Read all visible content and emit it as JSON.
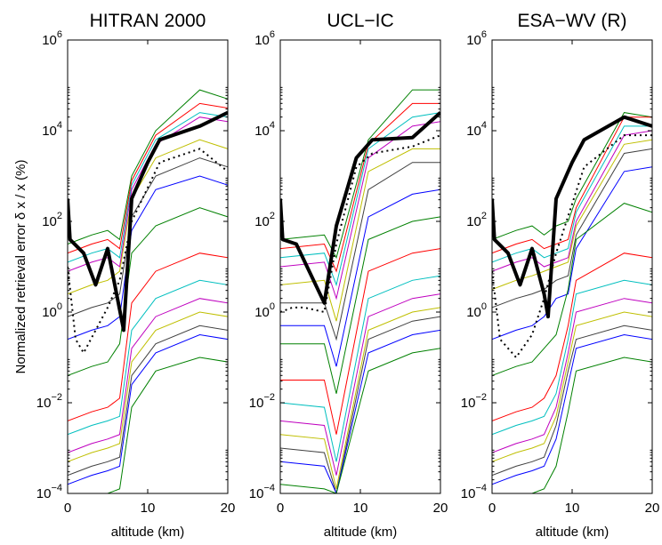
{
  "ylabel": "Normalized retrieval error  δ x / x (%)",
  "chart_data": [
    {
      "type": "line",
      "title": "HITRAN 2000",
      "xlabel": "altitude (km)",
      "xlim": [
        0,
        20
      ],
      "ylim_log10": [
        -4,
        6
      ],
      "yscale": "log",
      "x_ticks": [
        "0",
        "10",
        "20"
      ],
      "y_ticks": [
        "10^-4",
        "10^-2",
        "10^0",
        "10^2",
        "10^4",
        "10^6"
      ],
      "x": [
        0,
        1.5,
        3,
        5,
        6.5,
        8,
        11,
        16.5,
        20
      ],
      "colors": [
        "#008000",
        "#ff0000",
        "#00bfbf",
        "#bf00bf",
        "#bfbf00",
        "#404040",
        "#0000ff",
        "#008000",
        "#ff0000",
        "#00bfbf",
        "#bf00bf",
        "#bfbf00",
        "#404040",
        "#0000ff",
        "#008000"
      ],
      "thin_log10": [
        [
          1.5,
          1.6,
          1.7,
          1.8,
          1.6,
          3.0,
          4.0,
          4.9,
          4.7
        ],
        [
          1.3,
          1.4,
          1.5,
          1.6,
          1.4,
          2.9,
          3.9,
          4.6,
          4.5
        ],
        [
          1.1,
          1.2,
          1.3,
          1.4,
          1.2,
          2.8,
          3.8,
          4.4,
          4.3
        ],
        [
          0.9,
          1.0,
          1.1,
          1.2,
          1.0,
          2.7,
          3.7,
          4.3,
          4.2
        ],
        [
          0.4,
          0.5,
          0.6,
          0.7,
          0.9,
          2.5,
          3.4,
          3.8,
          3.6
        ],
        [
          -0.1,
          0.0,
          0.1,
          0.2,
          0.4,
          2.1,
          3.0,
          3.4,
          3.2
        ],
        [
          -0.6,
          -0.5,
          -0.4,
          -0.3,
          -0.1,
          1.8,
          2.7,
          3.0,
          2.8
        ],
        [
          -1.4,
          -1.3,
          -1.2,
          -1.1,
          -0.7,
          1.3,
          1.9,
          2.3,
          2.1
        ],
        [
          -2.4,
          -2.3,
          -2.2,
          -2.1,
          -1.9,
          0.2,
          0.9,
          1.3,
          1.2
        ],
        [
          -2.7,
          -2.6,
          -2.5,
          -2.4,
          -2.3,
          -0.4,
          0.3,
          0.7,
          0.6
        ],
        [
          -3.1,
          -3.0,
          -2.9,
          -2.8,
          -2.7,
          -0.8,
          -0.1,
          0.3,
          0.2
        ],
        [
          -3.3,
          -3.2,
          -3.1,
          -3.0,
          -2.9,
          -1.1,
          -0.4,
          0.0,
          -0.1
        ],
        [
          -3.6,
          -3.5,
          -3.4,
          -3.3,
          -3.2,
          -1.4,
          -0.7,
          -0.3,
          -0.4
        ],
        [
          -3.8,
          -3.7,
          -3.6,
          -3.5,
          -3.4,
          -1.6,
          -0.9,
          -0.5,
          -0.6
        ],
        [
          -4.3,
          -4.2,
          -4.1,
          -4.0,
          -3.9,
          -2.1,
          -1.3,
          -1.0,
          -1.1
        ]
      ],
      "bold_x": [
        0,
        0.3,
        2,
        3.5,
        5,
        7,
        8,
        10,
        11.5,
        16.5,
        20
      ],
      "bold_log10": [
        2.5,
        1.6,
        1.3,
        0.6,
        1.4,
        -0.4,
        2.5,
        3.3,
        3.8,
        4.1,
        4.4
      ],
      "dotted_x": [
        0,
        1,
        2,
        3.5,
        5,
        6.5,
        8,
        11.5,
        16.5,
        20
      ],
      "dotted_log10": [
        1.0,
        -0.6,
        -0.9,
        -0.4,
        0.1,
        0.7,
        2.0,
        3.3,
        3.6,
        3.1
      ]
    },
    {
      "type": "line",
      "title": "UCL−IC",
      "xlabel": "altitude (km)",
      "xlim": [
        0,
        20
      ],
      "ylim_log10": [
        -4,
        6
      ],
      "yscale": "log",
      "x_ticks": [
        "0",
        "10",
        "20"
      ],
      "y_ticks": [
        "10^-4",
        "10^-2",
        "10^0",
        "10^2",
        "10^4",
        "10^6"
      ],
      "x": [
        0,
        5.5,
        7,
        11,
        16.5,
        20
      ],
      "colors": [
        "#008000",
        "#ff0000",
        "#00bfbf",
        "#bf00bf",
        "#bfbf00",
        "#404040",
        "#0000ff",
        "#008000",
        "#ff0000",
        "#00bfbf",
        "#bf00bf",
        "#bfbf00",
        "#404040",
        "#0000ff",
        "#008000"
      ],
      "thin_log10": [
        [
          1.6,
          1.7,
          1.2,
          3.8,
          4.9,
          4.9
        ],
        [
          1.4,
          1.5,
          0.9,
          3.7,
          4.6,
          4.6
        ],
        [
          1.2,
          1.3,
          0.6,
          3.6,
          4.3,
          4.4
        ],
        [
          1.0,
          1.1,
          0.3,
          3.4,
          4.1,
          4.2
        ],
        [
          0.6,
          0.7,
          -0.2,
          3.1,
          3.6,
          3.6
        ],
        [
          0.2,
          0.2,
          -0.6,
          2.7,
          3.3,
          3.3
        ],
        [
          -0.3,
          -0.3,
          -1.2,
          2.1,
          2.6,
          2.7
        ],
        [
          -0.7,
          -0.7,
          -1.8,
          1.6,
          2.0,
          2.1
        ],
        [
          -1.5,
          -1.5,
          -2.7,
          0.9,
          1.3,
          1.4
        ],
        [
          -2.0,
          -2.1,
          -3.3,
          0.3,
          0.7,
          0.8
        ],
        [
          -2.4,
          -2.5,
          -3.6,
          -0.1,
          0.3,
          0.4
        ],
        [
          -2.7,
          -2.8,
          -3.9,
          -0.4,
          0.0,
          0.1
        ],
        [
          -3.0,
          -3.1,
          -4.1,
          -0.6,
          -0.2,
          -0.1
        ],
        [
          -3.3,
          -3.4,
          -4.3,
          -0.9,
          -0.5,
          -0.4
        ],
        [
          -3.8,
          -3.9,
          -4.6,
          -1.3,
          -0.9,
          -0.8
        ]
      ],
      "bold_x": [
        0,
        0.3,
        2,
        5.5,
        7,
        9.5,
        11.5,
        16.5,
        20
      ],
      "bold_log10": [
        2.5,
        1.6,
        1.5,
        0.2,
        1.9,
        3.4,
        3.8,
        3.85,
        4.4
      ],
      "dotted_x": [
        0,
        1.5,
        3,
        5.5,
        7,
        9.5,
        11.5,
        16.5,
        20
      ],
      "dotted_log10": [
        0.0,
        0.1,
        0.1,
        0.0,
        1.5,
        3.2,
        3.5,
        3.65,
        3.9
      ]
    },
    {
      "type": "line",
      "title": "ESA−WV (R)",
      "xlabel": "altitude (km)",
      "xlim": [
        0,
        20
      ],
      "ylim_log10": [
        -4,
        6
      ],
      "yscale": "log",
      "x_ticks": [
        "0",
        "10",
        "20"
      ],
      "y_ticks": [
        "10^-4",
        "10^-2",
        "10^0",
        "10^2",
        "10^4",
        "10^6"
      ],
      "x": [
        0,
        1.5,
        3,
        5,
        6.5,
        8,
        9.5,
        10.5,
        16.5,
        20
      ],
      "colors": [
        "#008000",
        "#ff0000",
        "#00bfbf",
        "#bf00bf",
        "#bfbf00",
        "#404040",
        "#0000ff",
        "#008000",
        "#ff0000",
        "#00bfbf",
        "#bf00bf",
        "#bfbf00",
        "#404040",
        "#0000ff",
        "#008000"
      ],
      "thin_log10": [
        [
          1.6,
          1.7,
          1.8,
          1.9,
          1.7,
          1.9,
          2.0,
          2.5,
          4.4,
          4.3
        ],
        [
          1.3,
          1.4,
          1.5,
          1.6,
          1.4,
          1.5,
          1.6,
          2.3,
          4.3,
          4.3
        ],
        [
          1.1,
          1.2,
          1.3,
          1.4,
          1.2,
          1.3,
          1.4,
          2.2,
          4.1,
          4.1
        ],
        [
          0.9,
          1.0,
          1.1,
          1.2,
          1.0,
          1.1,
          1.2,
          2.0,
          3.9,
          4.0
        ],
        [
          0.5,
          0.6,
          0.7,
          0.8,
          0.9,
          1.0,
          1.1,
          1.9,
          3.7,
          3.8
        ],
        [
          0.1,
          0.2,
          0.3,
          0.4,
          0.5,
          0.7,
          0.8,
          1.7,
          3.5,
          3.6
        ],
        [
          -0.6,
          -0.5,
          -0.4,
          -0.3,
          -0.1,
          0.3,
          0.4,
          1.4,
          3.1,
          3.2
        ],
        [
          -1.4,
          -1.3,
          -1.2,
          -1.1,
          -0.8,
          -0.5,
          0.5,
          1.6,
          2.4,
          2.2
        ],
        [
          -2.4,
          -2.3,
          -2.2,
          -2.1,
          -1.9,
          -1.4,
          -0.3,
          0.7,
          1.3,
          1.2
        ],
        [
          -2.7,
          -2.6,
          -2.5,
          -2.4,
          -2.3,
          -1.8,
          -0.6,
          0.4,
          0.7,
          0.6
        ],
        [
          -3.1,
          -3.0,
          -2.9,
          -2.8,
          -2.7,
          -2.1,
          -0.9,
          0.0,
          0.3,
          0.2
        ],
        [
          -3.3,
          -3.2,
          -3.1,
          -3.0,
          -2.9,
          -2.3,
          -1.1,
          -0.3,
          0.0,
          -0.1
        ],
        [
          -3.6,
          -3.5,
          -3.4,
          -3.3,
          -3.2,
          -2.5,
          -1.3,
          -0.6,
          -0.3,
          -0.4
        ],
        [
          -3.8,
          -3.7,
          -3.6,
          -3.5,
          -3.4,
          -2.8,
          -1.6,
          -0.8,
          -0.5,
          -0.6
        ],
        [
          -4.3,
          -4.2,
          -4.1,
          -4.0,
          -3.9,
          -3.4,
          -2.2,
          -1.3,
          -1.0,
          -1.1
        ]
      ],
      "bold_x": [
        0,
        0.3,
        2,
        3.5,
        5,
        6.5,
        7,
        8,
        10,
        11.5,
        16.5,
        20
      ],
      "bold_log10": [
        2.5,
        1.6,
        1.3,
        0.6,
        1.4,
        0.4,
        -0.1,
        2.5,
        3.3,
        3.8,
        4.3,
        4.1
      ],
      "dotted_x": [
        0,
        1,
        3,
        5,
        6.5,
        8,
        11.5,
        16.5,
        20
      ],
      "dotted_log10": [
        0.9,
        -0.6,
        -1.0,
        -0.5,
        0.3,
        1.3,
        3.2,
        3.9,
        3.9
      ]
    }
  ]
}
